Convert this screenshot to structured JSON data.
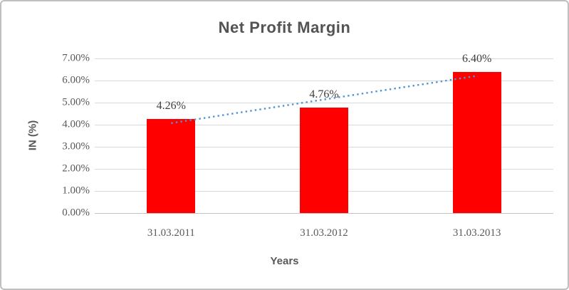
{
  "chart_data": {
    "type": "bar",
    "title": "Net Profit Margin",
    "xlabel": "Years",
    "ylabel": "IN (%)",
    "categories": [
      "31.03.2011",
      "31.03.2012",
      "31.03.2013"
    ],
    "values": [
      4.26,
      4.76,
      6.4
    ],
    "data_labels": [
      "4.26%",
      "4.76%",
      "6.40%"
    ],
    "y_ticks": [
      "7.00%",
      "6.00%",
      "5.00%",
      "4.00%",
      "3.00%",
      "2.00%",
      "1.00%",
      "0.00%"
    ],
    "y_tick_values": [
      7,
      6,
      5,
      4,
      3,
      2,
      1,
      0
    ],
    "ylim": [
      0,
      7
    ],
    "grid": true,
    "legend": "none",
    "bar_color": "#ff0000",
    "trendline": {
      "type": "linear",
      "style": "dotted",
      "color": "#4f94d6",
      "values": [
        4.07,
        5.14,
        6.21
      ]
    },
    "colors": {
      "title_text": "#535353",
      "axis_text": "#595959",
      "data_label_text": "#3f3f3f",
      "gridline": "#d9d9d9",
      "axis_line": "#c3c3c3",
      "chart_border": "#bfbfbf",
      "background": "#ffffff"
    }
  }
}
